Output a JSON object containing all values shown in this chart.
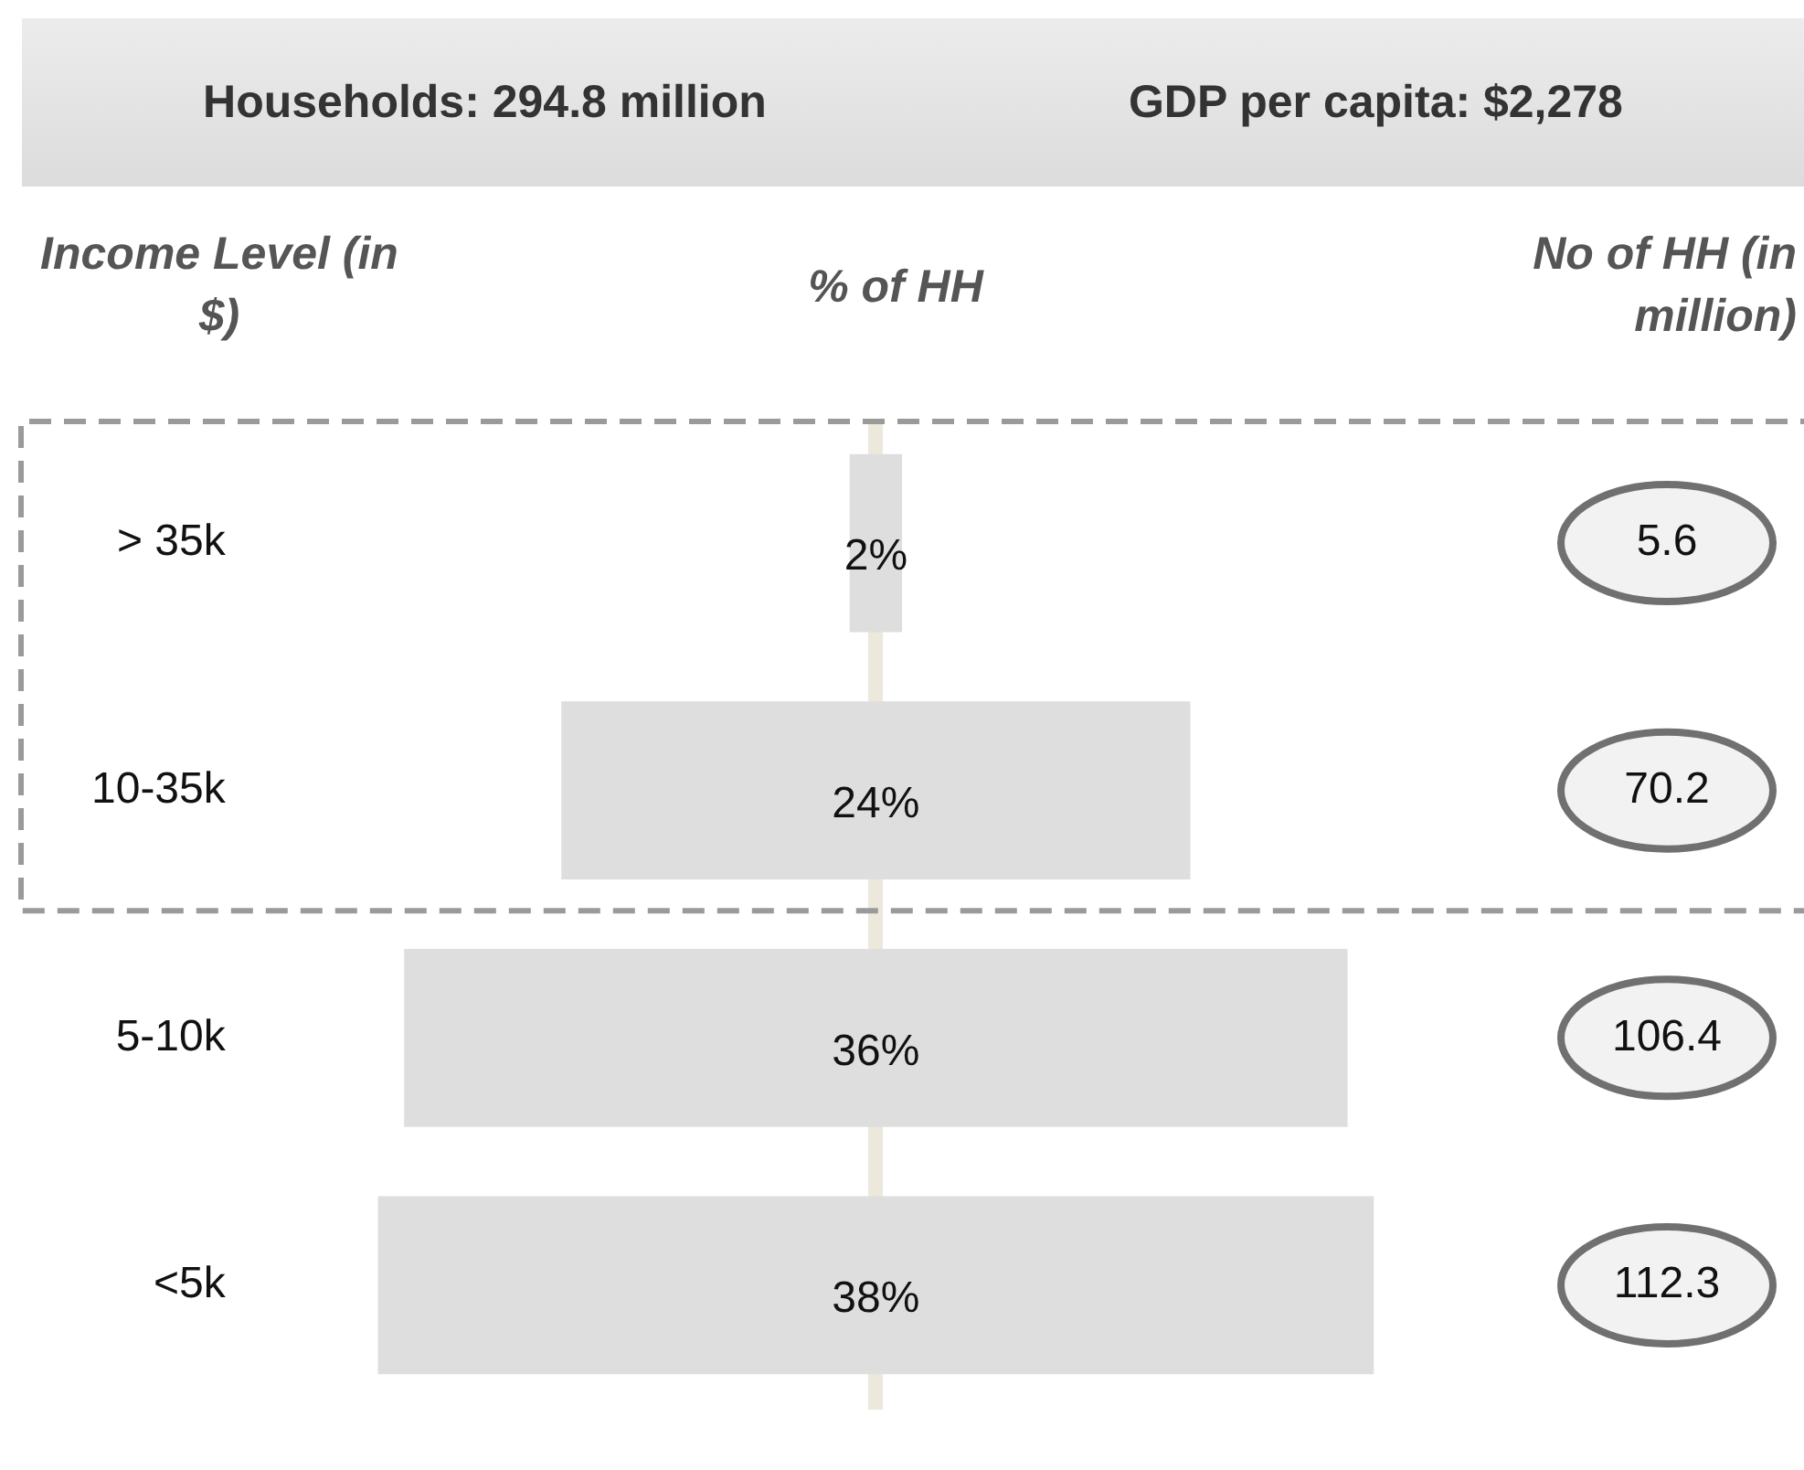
{
  "chart_data": {
    "type": "other",
    "title": "Households: 294.8 million",
    "subtitle": "GDP per capita: $2,278",
    "ylabel": "Income Level (in $)",
    "xlabel": "% of HH",
    "categories": [
      "> 35k",
      "10-35k",
      "5-10k",
      "<5k"
    ],
    "values": [
      2,
      24,
      36,
      38
    ],
    "value_labels": [
      "2%",
      "24%",
      "36%",
      "38%"
    ],
    "color": "#dedede",
    "annotations": [
      "No of HH (in million)",
      "5.6",
      "70.2",
      "106.4",
      "112.3"
    ]
  }
}
